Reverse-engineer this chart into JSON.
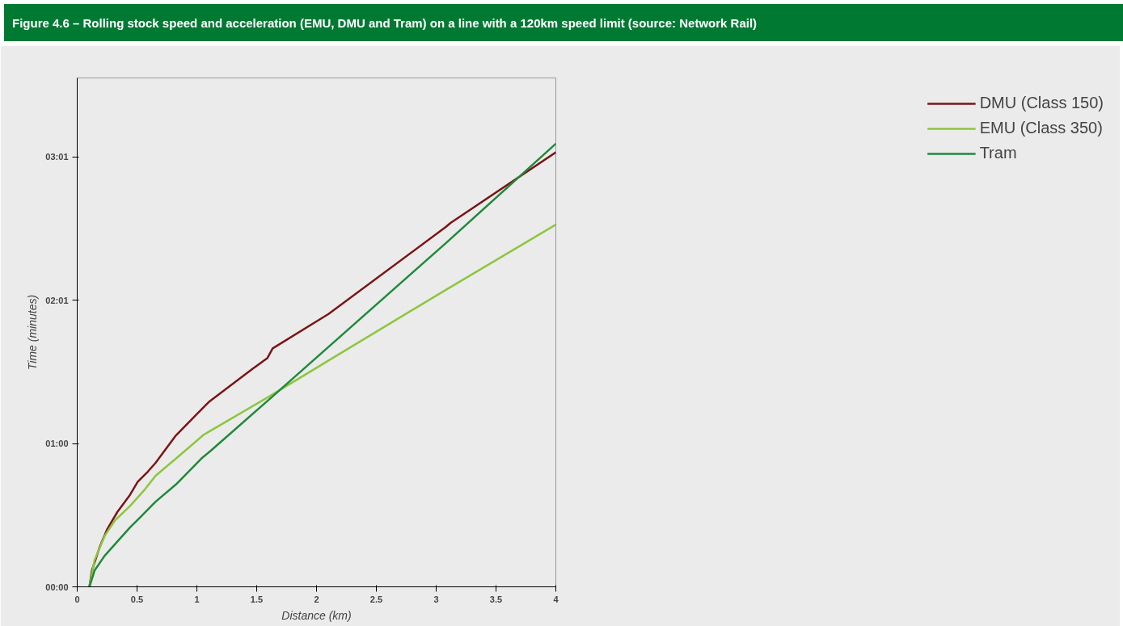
{
  "chart_data": {
    "type": "line",
    "title": "Figure 4.6 – Rolling stock speed and acceleration (EMU, DMU and Tram) on a line with a 120km speed limit (source: Network Rail)",
    "xlabel": "Distance (km)",
    "ylabel": "Time (minutes)",
    "xlim": [
      0,
      4
    ],
    "xticks": [
      0,
      {
        "value": 0.5,
        "label": "0.5"
      },
      1,
      {
        "value": 1.5,
        "label": "1.5"
      },
      2,
      {
        "value": 2.5,
        "label": "2.5"
      },
      3,
      {
        "value": 3.5,
        "label": "3.5"
      },
      4
    ],
    "ylim": [
      0,
      3.58
    ],
    "yticks": [
      {
        "value": 0,
        "label": "00:00"
      },
      {
        "value": 1.008,
        "label": "01:00"
      },
      {
        "value": 2.017,
        "label": "02:01"
      },
      {
        "value": 3.025,
        "label": "03:01"
      }
    ],
    "grid": false,
    "legend": "right",
    "line_style": "solid",
    "series": [
      {
        "name": "DMU (Class 150)",
        "color": "#7b1416",
        "x": [
          0.102,
          0.123,
          0.187,
          0.251,
          0.336,
          0.442,
          0.506,
          0.591,
          0.655,
          0.825,
          0.995,
          1.101,
          1.462,
          1.59,
          1.633,
          2.1,
          3.078,
          3.12,
          4
        ],
        "values": [
          0,
          0.115,
          0.278,
          0.406,
          0.527,
          0.648,
          0.739,
          0.811,
          0.872,
          1.065,
          1.211,
          1.301,
          1.531,
          1.61,
          1.677,
          1.919,
          2.53,
          2.56,
          3.057
        ]
      },
      {
        "name": "EMU (Class 350)",
        "color": "#8dc63f",
        "x": [
          0.102,
          0.145,
          0.229,
          0.314,
          0.442,
          0.57,
          0.655,
          0.825,
          1.059,
          1.59,
          2.1,
          3.078,
          4
        ],
        "values": [
          0,
          0.188,
          0.357,
          0.466,
          0.569,
          0.69,
          0.781,
          0.902,
          1.071,
          1.332,
          1.592,
          2.088,
          2.548
        ]
      },
      {
        "name": "Tram",
        "color": "#1e8a3a",
        "x": [
          0.102,
          0.145,
          0.229,
          0.357,
          0.442,
          0.527,
          0.655,
          0.825,
          1.037,
          1.122,
          1.59,
          3.078,
          4
        ],
        "values": [
          0,
          0.115,
          0.218,
          0.339,
          0.418,
          0.49,
          0.599,
          0.72,
          0.902,
          0.962,
          1.308,
          2.416,
          3.118
        ]
      }
    ]
  }
}
